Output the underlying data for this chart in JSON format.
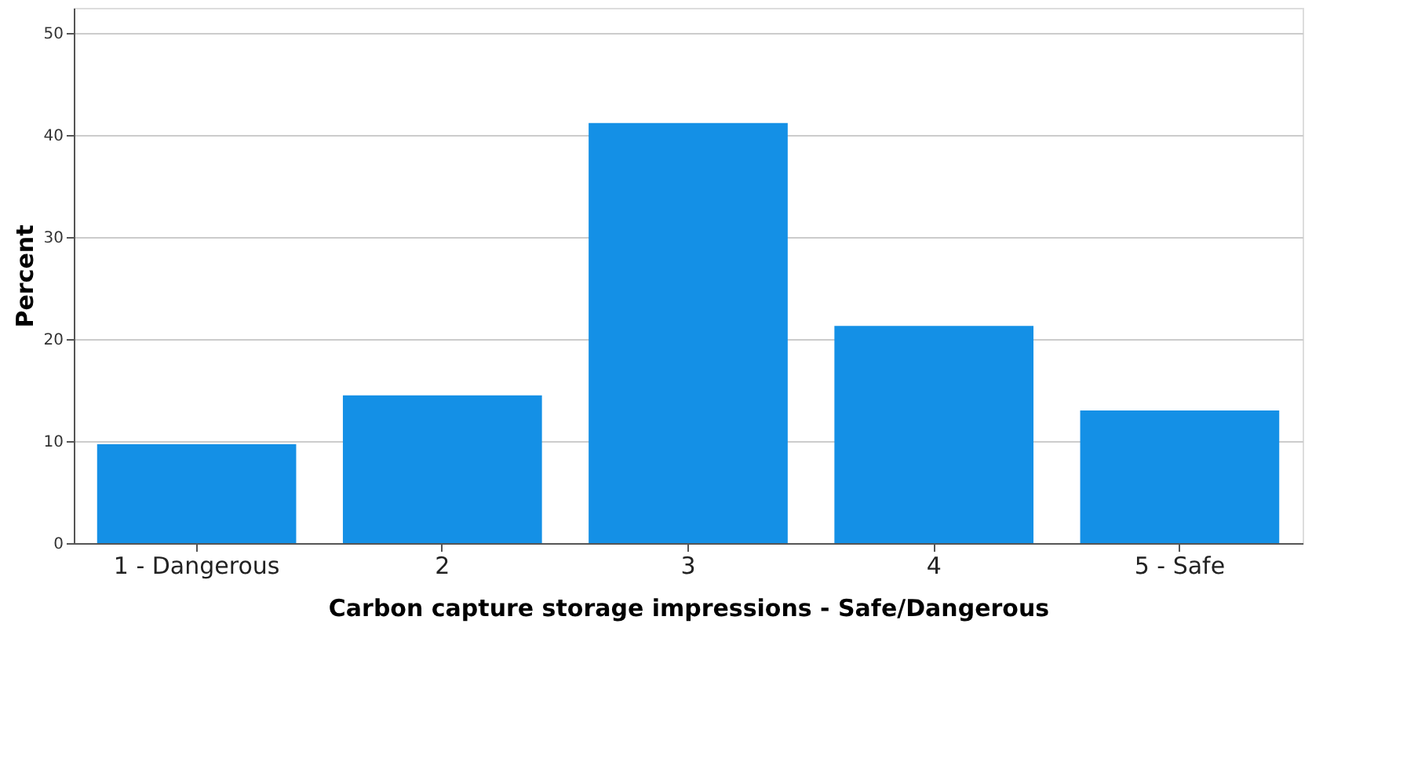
{
  "chart_data": {
    "type": "bar",
    "xlabel": "Carbon capture storage impressions - Safe/Dangerous",
    "ylabel": "Percent",
    "categories": [
      "1 - Dangerous",
      "2",
      "3",
      "4",
      "5 - Safe"
    ],
    "values": [
      9.7,
      14.5,
      41.2,
      21.3,
      13.0
    ],
    "color": "#1490e6",
    "ylim": [
      0,
      52.5
    ],
    "yticks": [
      0,
      10,
      20,
      30,
      40,
      50
    ],
    "grid": "y"
  }
}
